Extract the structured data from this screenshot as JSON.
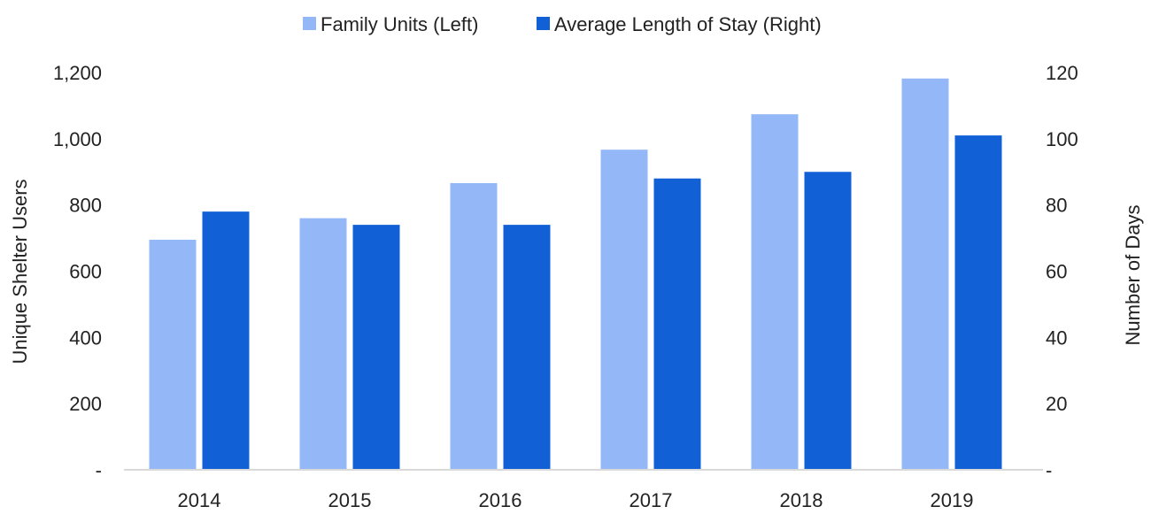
{
  "chart_data": {
    "type": "bar",
    "categories": [
      "2014",
      "2015",
      "2016",
      "2017",
      "2018",
      "2019"
    ],
    "series": [
      {
        "name": "Family Units (Left)",
        "axis": "left",
        "color": "#94b8f7",
        "values": [
          695,
          760,
          866,
          967,
          1074,
          1182
        ]
      },
      {
        "name": "Average Length of Stay (Right)",
        "axis": "right",
        "color": "#1160d6",
        "values": [
          78,
          74,
          74,
          88,
          90,
          101
        ]
      }
    ],
    "ylabel_left": "Unique Shelter Users",
    "ylabel_right": "Number of Days",
    "ylim_left": [
      0,
      1200
    ],
    "ylim_right": [
      0,
      120
    ],
    "yticks_left": [
      "-",
      "200",
      "400",
      "600",
      "800",
      "1,000",
      "1,200"
    ],
    "yticks_right": [
      "-",
      "20",
      "40",
      "60",
      "80",
      "100",
      "120"
    ],
    "legend_position": "top-center",
    "grid": false
  }
}
